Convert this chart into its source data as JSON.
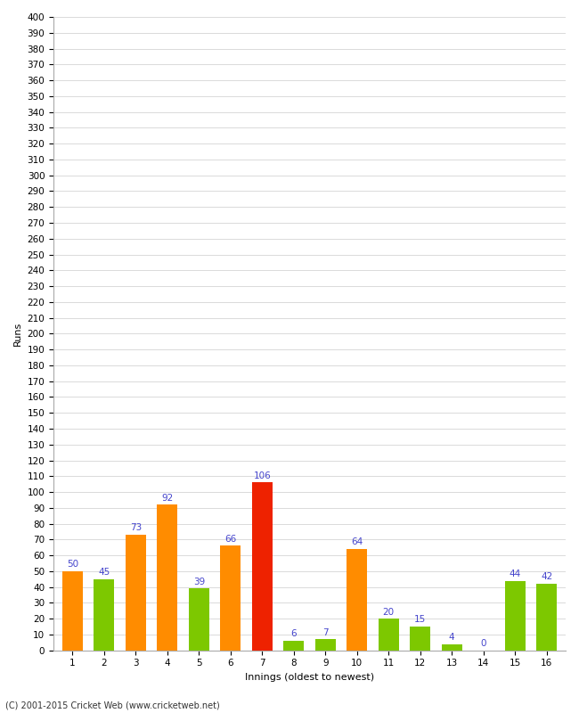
{
  "innings": [
    1,
    2,
    3,
    4,
    5,
    6,
    7,
    8,
    9,
    10,
    11,
    12,
    13,
    14,
    15,
    16
  ],
  "runs": [
    50,
    45,
    73,
    92,
    39,
    66,
    106,
    6,
    7,
    64,
    20,
    15,
    4,
    0,
    44,
    42
  ],
  "colors": [
    "#ff8c00",
    "#7dc800",
    "#ff8c00",
    "#ff8c00",
    "#7dc800",
    "#ff8c00",
    "#ee2200",
    "#7dc800",
    "#7dc800",
    "#ff8c00",
    "#7dc800",
    "#7dc800",
    "#7dc800",
    "#7dc800",
    "#7dc800",
    "#7dc800"
  ],
  "xlabel": "Innings (oldest to newest)",
  "ylabel": "Runs",
  "ylim": [
    0,
    400
  ],
  "ytick_step": 10,
  "label_color": "#4444cc",
  "footer": "(C) 2001-2015 Cricket Web (www.cricketweb.net)",
  "bg_color": "#ffffff",
  "plot_bg_color": "#ffffff",
  "grid_color": "#cccccc",
  "label_fontsize": 7.5,
  "tick_fontsize": 7.5,
  "ylabel_fontsize": 8,
  "xlabel_fontsize": 8
}
